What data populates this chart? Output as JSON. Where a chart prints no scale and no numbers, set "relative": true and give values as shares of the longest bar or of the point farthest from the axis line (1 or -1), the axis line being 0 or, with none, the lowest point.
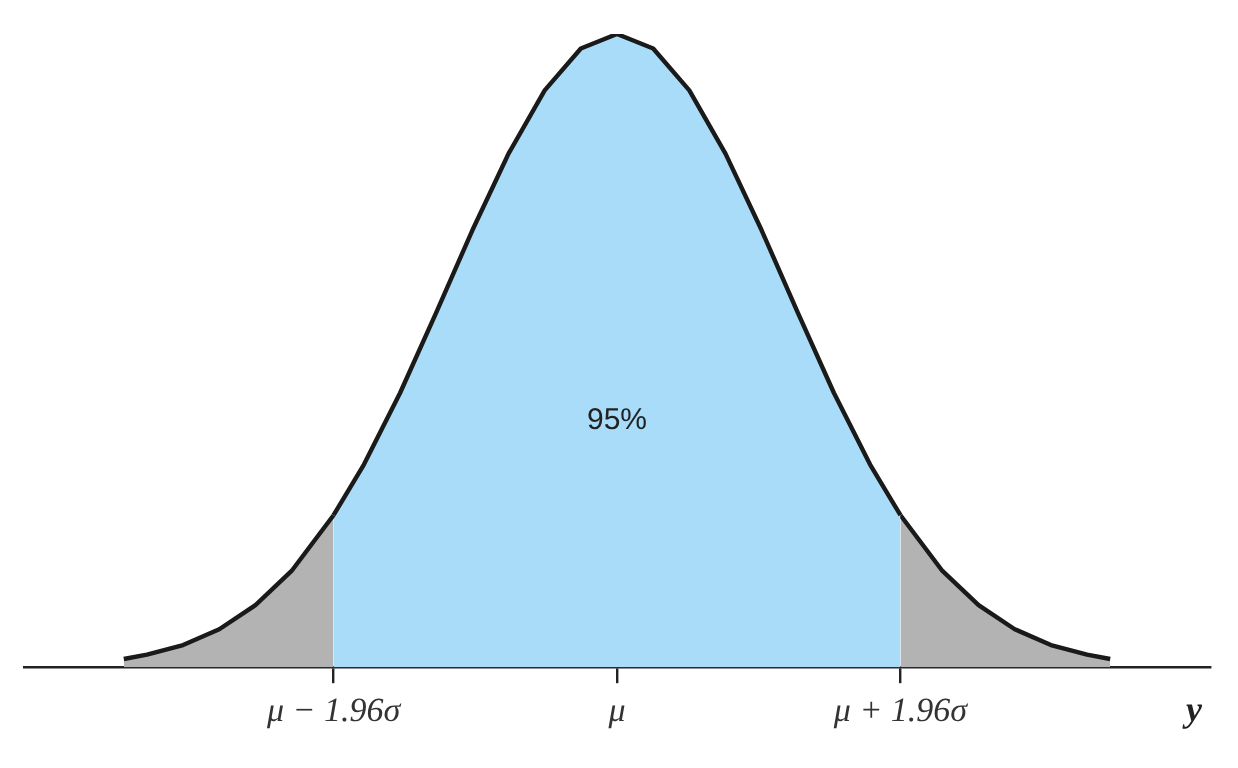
{
  "chart_data": {
    "type": "area",
    "relative": true,
    "xlabel": "y",
    "xlim": [
      -4.1,
      4.1
    ],
    "xticks": [
      {
        "value": -1.96,
        "label": "μ − 1.96σ"
      },
      {
        "value": 0,
        "label": "μ"
      },
      {
        "value": 1.96,
        "label": "μ + 1.96σ"
      }
    ],
    "series": [
      {
        "color": "#b3b3b3",
        "x": [
          -3.41,
          -3.25,
          -3,
          -2.75,
          -2.5,
          -2.25,
          -1.96
        ],
        "values": [
          0.013,
          0.02,
          0.035,
          0.06,
          0.098,
          0.152,
          0.24
        ]
      },
      {
        "color": "#a8dcf8",
        "x": [
          -1.96,
          -1.75,
          -1.5,
          -1.25,
          -1,
          -0.75,
          -0.5,
          -0.25,
          0,
          0.25,
          0.5,
          0.75,
          1,
          1.25,
          1.5,
          1.75,
          1.96
        ],
        "values": [
          0.24,
          0.32,
          0.433,
          0.56,
          0.69,
          0.811,
          0.911,
          0.977,
          1,
          0.977,
          0.911,
          0.811,
          0.69,
          0.56,
          0.433,
          0.32,
          0.24
        ]
      },
      {
        "color": "#b3b3b3",
        "x": [
          1.96,
          2.25,
          2.5,
          2.75,
          3,
          3.25,
          3.41
        ],
        "values": [
          0.24,
          0.152,
          0.098,
          0.06,
          0.035,
          0.02,
          0.013
        ]
      }
    ],
    "annotations": [
      "95%"
    ],
    "marker": "none",
    "grid": false,
    "legend": false
  }
}
